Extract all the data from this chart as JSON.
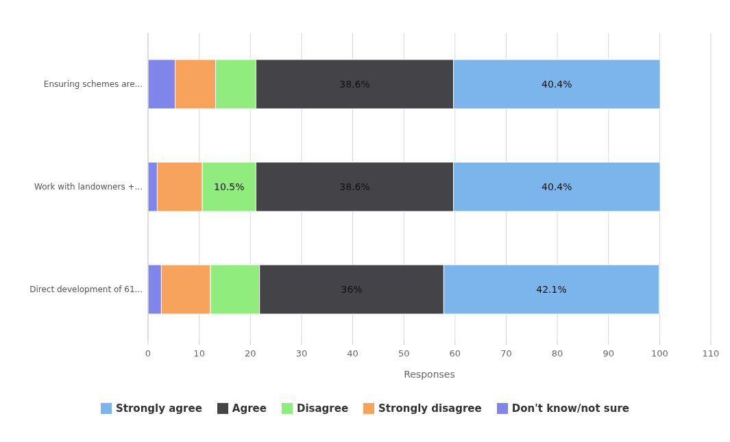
{
  "chart_data": {
    "type": "bar",
    "orientation": "horizontal",
    "stacked": true,
    "categories": [
      "Ensuring schemes are...",
      "Work with landowners +...",
      "Direct development of 61..."
    ],
    "series": [
      {
        "name": "Don't know/not sure",
        "color": "#8085e9",
        "values": [
          5.3,
          1.8,
          2.6
        ],
        "value_labels": [
          null,
          null,
          null
        ]
      },
      {
        "name": "Strongly disagree",
        "color": "#f7a35c",
        "values": [
          7.9,
          8.8,
          9.6
        ],
        "value_labels": [
          null,
          null,
          null
        ]
      },
      {
        "name": "Disagree",
        "color": "#90ed7d",
        "values": [
          7.9,
          10.5,
          9.6
        ],
        "value_labels": [
          null,
          "10.5%",
          null
        ]
      },
      {
        "name": "Agree",
        "color": "#434348",
        "values": [
          38.6,
          38.6,
          36
        ],
        "value_labels": [
          "38.6%",
          "38.6%",
          "36%"
        ]
      },
      {
        "name": "Strongly agree",
        "color": "#7cb5ec",
        "values": [
          40.4,
          40.4,
          42.1
        ],
        "value_labels": [
          "40.4%",
          "40.4%",
          "42.1%"
        ]
      }
    ],
    "xlabel": "Responses",
    "xlim": [
      0,
      110
    ],
    "xticks": [
      0,
      10,
      20,
      30,
      40,
      50,
      60,
      70,
      80,
      90,
      100,
      110
    ],
    "grid": "x",
    "legend": "bottom"
  }
}
